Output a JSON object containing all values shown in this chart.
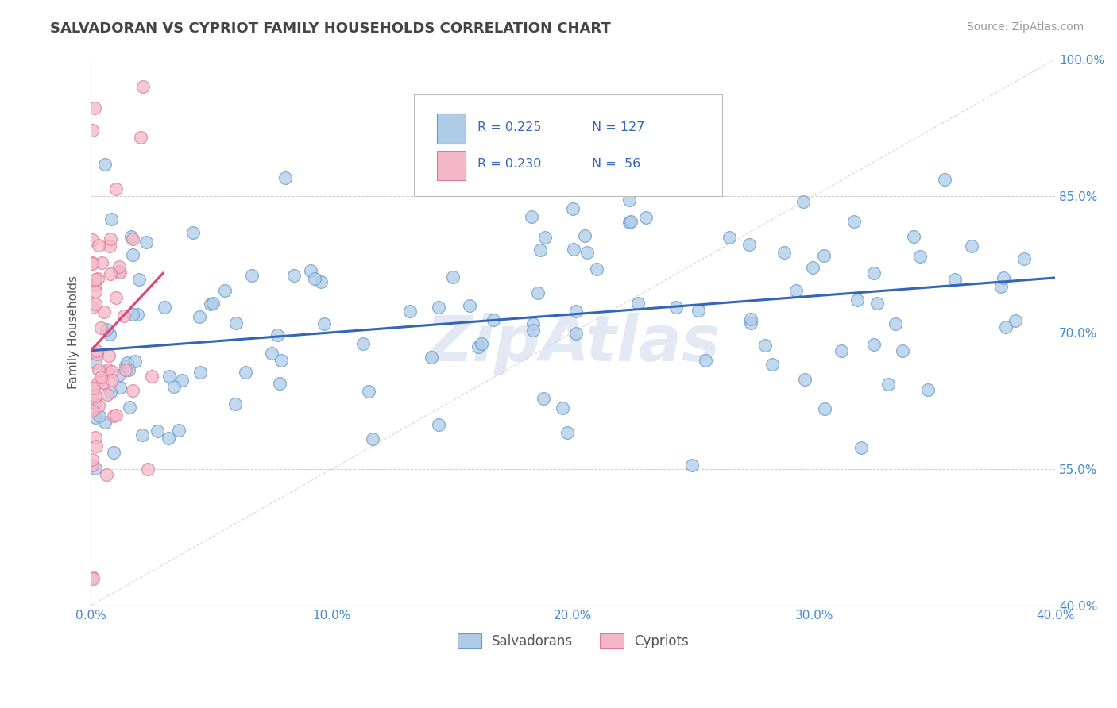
{
  "title": "SALVADORAN VS CYPRIOT FAMILY HOUSEHOLDS CORRELATION CHART",
  "source_text": "Source: ZipAtlas.com",
  "ylabel": "Family Households",
  "watermark": "ZipAtlas",
  "legend_blue_r": "0.225",
  "legend_blue_n": "127",
  "legend_pink_r": "0.230",
  "legend_pink_n": " 56",
  "legend_blue_label": "Salvadorans",
  "legend_pink_label": "Cypriots",
  "xlim": [
    0.0,
    40.0
  ],
  "ylim": [
    40.0,
    100.0
  ],
  "xtick_labels": [
    "0.0%",
    "10.0%",
    "20.0%",
    "30.0%",
    "40.0%"
  ],
  "xtick_vals": [
    0,
    10,
    20,
    30,
    40
  ],
  "ytick_labels": [
    "100.0%",
    "85.0%",
    "70.0%",
    "55.0%",
    "40.0%"
  ],
  "ytick_vals": [
    100,
    85,
    70,
    55,
    40
  ],
  "blue_color": "#aecce8",
  "blue_edge": "#6699cc",
  "pink_color": "#f5b8c8",
  "pink_edge": "#e07898",
  "blue_line_color": "#3366bb",
  "pink_line_color": "#dd4477",
  "ref_line_color": "#d8d8d8",
  "blue_trend_x0": 0.0,
  "blue_trend_y0": 68.0,
  "blue_trend_x1": 40.0,
  "blue_trend_y1": 76.0,
  "pink_trend_x0": 0.0,
  "pink_trend_y0": 68.0,
  "pink_trend_x1": 3.0,
  "pink_trend_y1": 76.5
}
